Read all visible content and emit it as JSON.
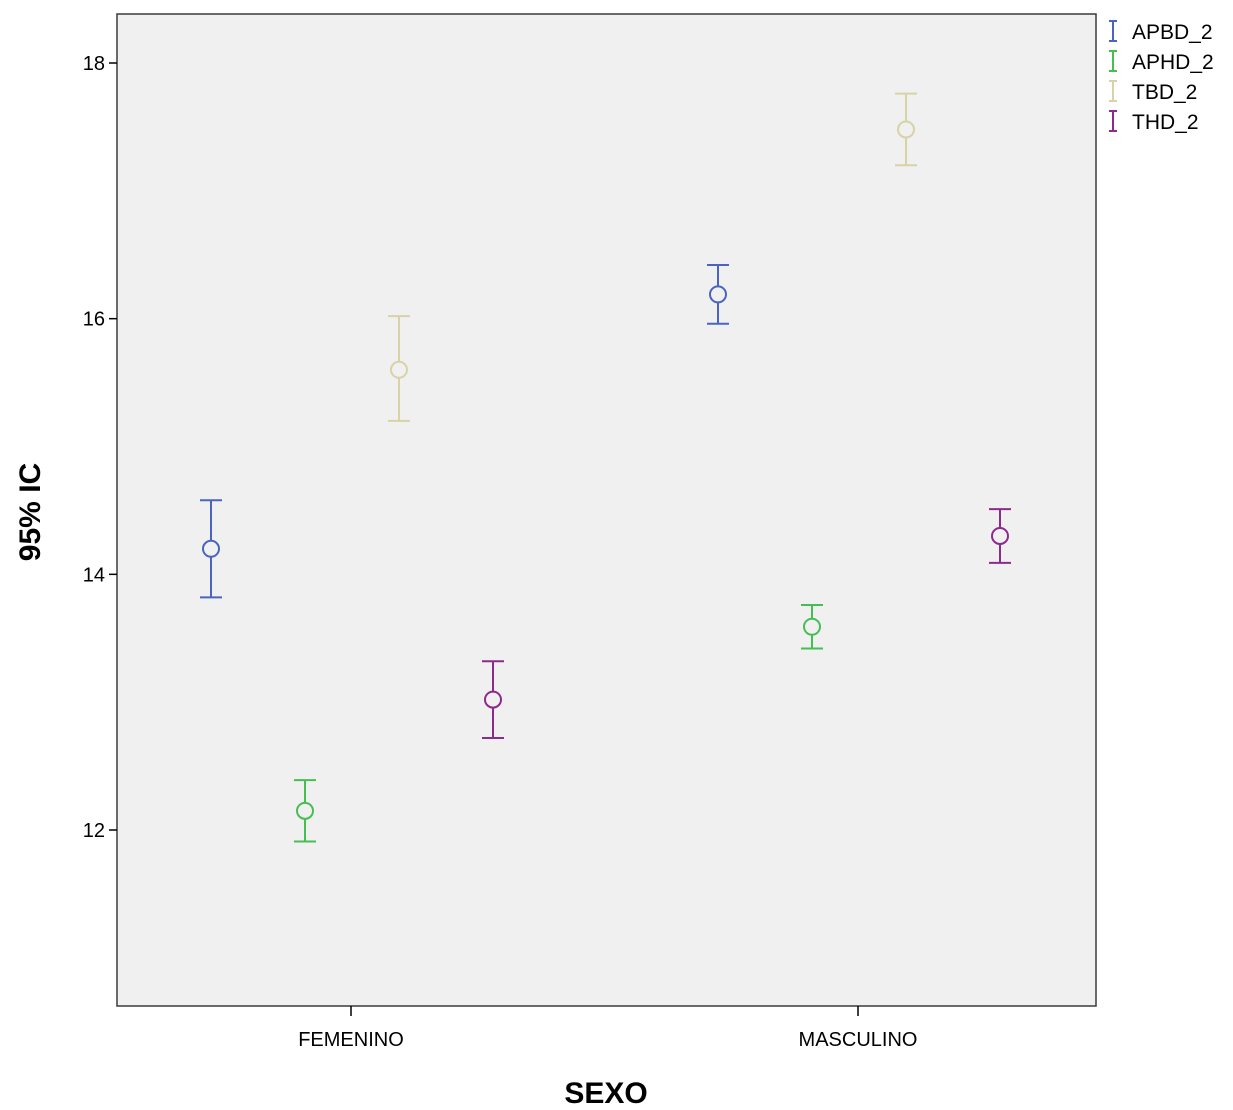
{
  "chart_data": {
    "type": "errorbar",
    "xlabel": "SEXO",
    "ylabel": "95% IC",
    "categories": [
      "FEMENINO",
      "MASCULINO"
    ],
    "ylim": [
      10.6,
      18.4
    ],
    "yticks": [
      12,
      14,
      16,
      18
    ],
    "ytick_labels": [
      "12",
      "14",
      "16",
      "18"
    ],
    "grid": false,
    "legend_position": "right-outside-top",
    "series": [
      {
        "name": "APBD_2",
        "color": "#4a64bf",
        "points": [
          {
            "category": "FEMENINO",
            "mean": 14.2,
            "lower": 13.82,
            "upper": 14.58
          },
          {
            "category": "MASCULINO",
            "mean": 16.19,
            "lower": 15.96,
            "upper": 16.42
          }
        ]
      },
      {
        "name": "APHD_2",
        "color": "#46be52",
        "points": [
          {
            "category": "FEMENINO",
            "mean": 12.15,
            "lower": 11.91,
            "upper": 12.39
          },
          {
            "category": "MASCULINO",
            "mean": 13.59,
            "lower": 13.42,
            "upper": 13.76
          }
        ]
      },
      {
        "name": "TBD_2",
        "color": "#d8d3a6",
        "points": [
          {
            "category": "FEMENINO",
            "mean": 15.6,
            "lower": 15.2,
            "upper": 16.02
          },
          {
            "category": "MASCULINO",
            "mean": 17.48,
            "lower": 17.2,
            "upper": 17.76
          }
        ]
      },
      {
        "name": "THD_2",
        "color": "#8e2a8e",
        "points": [
          {
            "category": "FEMENINO",
            "mean": 13.02,
            "lower": 12.72,
            "upper": 13.32
          },
          {
            "category": "MASCULINO",
            "mean": 14.3,
            "lower": 14.09,
            "upper": 14.51
          }
        ]
      }
    ]
  }
}
